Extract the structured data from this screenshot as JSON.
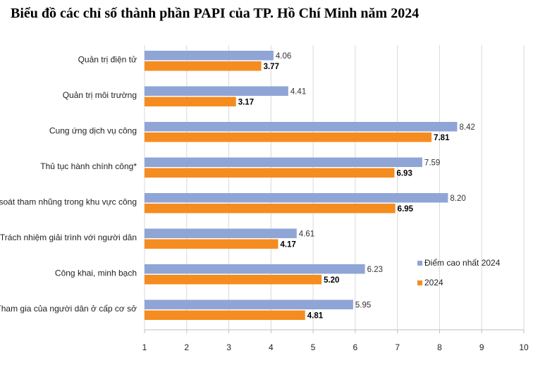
{
  "chart_data": {
    "type": "bar",
    "orientation": "horizontal",
    "title": "Biểu đồ các chỉ số thành phần PAPI của TP. Hồ Chí Minh năm 2024",
    "categories": [
      "Quản trị điện tử",
      "Quản trị môi trường",
      "Cung ứng dịch vụ công",
      "Thủ tục hành chính công*",
      "Kiểm soát tham nhũng trong khu vực công",
      "Trách nhiệm giải trình với người dân",
      "Công khai, minh bạch",
      "Tham gia của người dân ở cấp cơ sở"
    ],
    "series": [
      {
        "name": "Điểm cao nhất 2024",
        "color": "#8FA5D6",
        "values": [
          4.06,
          4.41,
          8.42,
          7.59,
          8.2,
          4.61,
          6.23,
          5.95
        ],
        "labels": [
          "4.06",
          "4.41",
          "8.42",
          "7.59",
          "8.20",
          "4.61",
          "6.23",
          "5.95"
        ]
      },
      {
        "name": "2024",
        "color": "#F58C1F",
        "values": [
          3.77,
          3.17,
          7.81,
          6.93,
          6.95,
          4.17,
          5.2,
          4.81
        ],
        "labels": [
          "3.77",
          "3.17",
          "7.81",
          "6.93",
          "6.95",
          "4.17",
          "5.20",
          "4.81"
        ]
      }
    ],
    "xlim": [
      1,
      10
    ],
    "x_ticks": [
      "1",
      "2",
      "3",
      "4",
      "5",
      "6",
      "7",
      "8",
      "9",
      "10"
    ],
    "grid": true,
    "legend_position": "right",
    "xlabel": "",
    "ylabel": ""
  }
}
